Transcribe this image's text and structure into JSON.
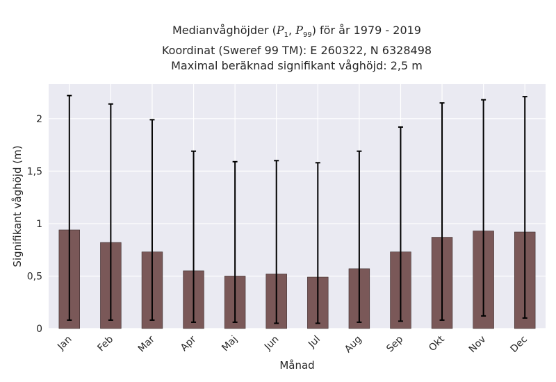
{
  "title": {
    "line1_prefix": "Medianvåghöjder (",
    "p1_base": "P",
    "p1_sub": "1",
    "separator": ", ",
    "p99_base": "P",
    "p99_sub": "99",
    "line1_suffix": ") för år 1979 - 2019",
    "line2": "Koordinat (Sweref 99 TM): E 260322, N 6328498",
    "line3": "Maximal beräknad signifikant våghöjd: 2,5 m"
  },
  "colors": {
    "plot_background": "#eaeaf2",
    "bar_fill": "#7a5858",
    "bar_edge": "#3a2a2a",
    "error_bar": "#000000",
    "grid": "#ffffff"
  },
  "chart_data": {
    "type": "bar",
    "categories": [
      "Jan",
      "Feb",
      "Mar",
      "Apr",
      "Maj",
      "Jun",
      "Jul",
      "Aug",
      "Sep",
      "Okt",
      "Nov",
      "Dec"
    ],
    "values": [
      0.94,
      0.82,
      0.73,
      0.55,
      0.5,
      0.52,
      0.49,
      0.57,
      0.73,
      0.87,
      0.93,
      0.92
    ],
    "error_low": [
      0.08,
      0.08,
      0.08,
      0.06,
      0.06,
      0.05,
      0.05,
      0.06,
      0.07,
      0.08,
      0.12,
      0.1
    ],
    "error_high": [
      2.22,
      2.14,
      1.99,
      1.69,
      1.59,
      1.6,
      1.58,
      1.69,
      1.92,
      2.15,
      2.18,
      2.21
    ],
    "xlabel": "Månad",
    "ylabel": "Signifikant våghöjd (m)",
    "ylim": [
      0,
      2.33
    ],
    "yticks": [
      0,
      0.5,
      1,
      1.5,
      2
    ],
    "ytick_labels": [
      "0",
      "0,5",
      "1",
      "1,5",
      "2"
    ],
    "grid": true
  }
}
